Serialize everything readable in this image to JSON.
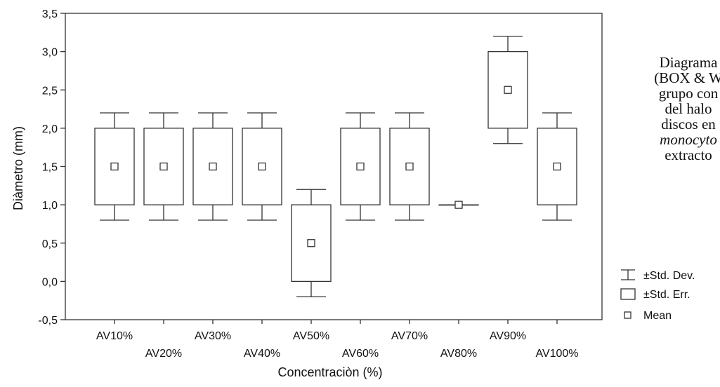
{
  "chart_data": {
    "type": "box",
    "categories": [
      "AV10%",
      "AV20%",
      "AV30%",
      "AV40%",
      "AV50%",
      "AV60%",
      "AV70%",
      "AV80%",
      "AV90%",
      "AV100%"
    ],
    "series": [
      {
        "name": "Mean",
        "values": [
          1.5,
          1.5,
          1.5,
          1.5,
          0.5,
          1.5,
          1.5,
          1.0,
          2.5,
          1.5
        ]
      },
      {
        "name": "±Std. Err.",
        "low": [
          1.0,
          1.0,
          1.0,
          1.0,
          0.0,
          1.0,
          1.0,
          1.0,
          2.0,
          1.0
        ],
        "high": [
          2.0,
          2.0,
          2.0,
          2.0,
          1.0,
          2.0,
          2.0,
          1.0,
          3.0,
          2.0
        ]
      },
      {
        "name": "±Std. Dev.",
        "low": [
          0.8,
          0.8,
          0.8,
          0.8,
          -0.2,
          0.8,
          0.8,
          1.0,
          1.8,
          0.8
        ],
        "high": [
          2.2,
          2.2,
          2.2,
          2.2,
          1.2,
          2.2,
          2.2,
          1.0,
          3.2,
          2.2
        ]
      }
    ],
    "xlabel": "Concentraciòn (%)",
    "ylabel": "Diàmetro (mm)",
    "ylim": [
      -0.5,
      3.5
    ],
    "yticks": [
      "-0,5",
      "0,0",
      "0,5",
      "1,0",
      "1,5",
      "2,0",
      "2,5",
      "3,0",
      "3,5"
    ],
    "grid": false,
    "legend_position": "bottom-right outside plot",
    "legend": [
      "±Std. Dev.",
      "±Std. Err.",
      "Mean"
    ]
  },
  "caption_lines": [
    "Diagrama",
    "(BOX & W",
    "grupo con",
    "del halo",
    "discos en",
    "monocyto",
    "extracto"
  ],
  "colors": {
    "line": "#333333",
    "background": "#ffffff",
    "text": "#111111"
  }
}
